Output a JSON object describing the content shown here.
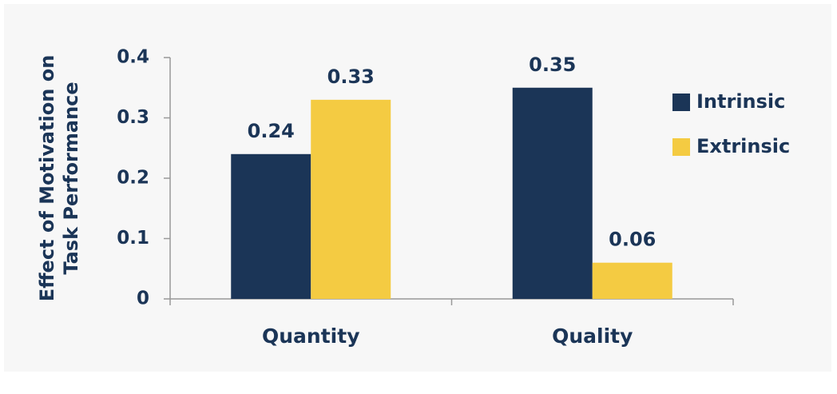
{
  "chart_data": {
    "type": "bar",
    "y_label": [
      "Effect of Motivation on",
      "Task Performance"
    ],
    "categories": [
      "Quantity",
      "Quality"
    ],
    "series": [
      {
        "name": "Intrinsic",
        "color": "#1b3557",
        "values": [
          0.24,
          0.35
        ]
      },
      {
        "name": "Extrinsic",
        "color": "#f4cb42",
        "values": [
          0.33,
          0.06
        ]
      }
    ],
    "ylim": [
      0,
      0.4
    ],
    "yticks": [
      0,
      0.1,
      0.2,
      0.3,
      0.4
    ],
    "grid": false,
    "legend": "right"
  }
}
